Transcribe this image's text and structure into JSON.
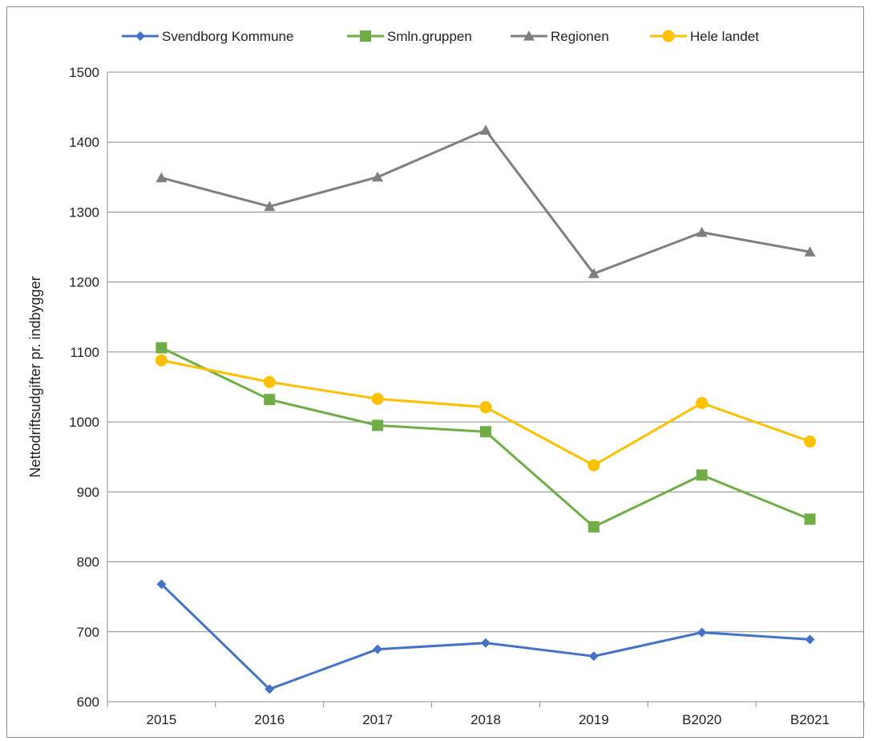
{
  "chart_data": {
    "type": "line",
    "title": "",
    "xlabel": "",
    "ylabel": "Nettodriftsudgifter pr. indbygger",
    "categories": [
      "2015",
      "2016",
      "2017",
      "2018",
      "2019",
      "B2020",
      "B2021"
    ],
    "ylim": [
      600,
      1500
    ],
    "yticks": [
      600,
      700,
      800,
      900,
      1000,
      1100,
      1200,
      1300,
      1400,
      1500
    ],
    "grid": "horizontal",
    "legend_position": "top",
    "series": [
      {
        "name": "Svendborg Kommune",
        "color": "#4472C4",
        "marker": "diamond",
        "values": [
          768,
          618,
          675,
          684,
          665,
          699,
          689
        ]
      },
      {
        "name": "Smln.gruppen",
        "color": "#70AD47",
        "marker": "square",
        "values": [
          1106,
          1032,
          995,
          986,
          850,
          924,
          861
        ]
      },
      {
        "name": "Regionen",
        "color": "#7F7F7F",
        "marker": "triangle",
        "values": [
          1349,
          1308,
          1350,
          1417,
          1212,
          1271,
          1243
        ]
      },
      {
        "name": "Hele landet",
        "color": "#FFC000",
        "marker": "circle",
        "values": [
          1088,
          1057,
          1033,
          1021,
          938,
          1027,
          972
        ]
      }
    ]
  }
}
